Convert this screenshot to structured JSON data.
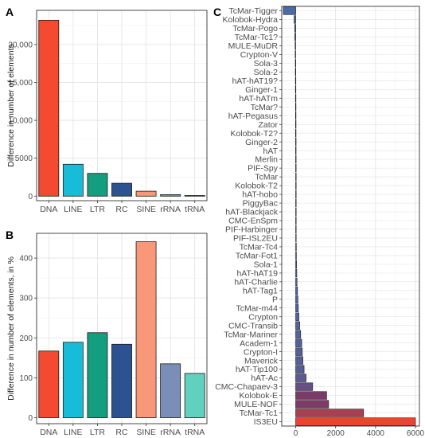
{
  "chart_data": [
    {
      "panel": "A",
      "type": "bar",
      "ylabel": "Difference in number of elements",
      "categories": [
        "DNA",
        "LINE",
        "LTR",
        "RC",
        "SINE",
        "rRNA",
        "tRNA"
      ],
      "values": [
        23200,
        4200,
        3000,
        1700,
        650,
        200,
        80
      ],
      "colors": [
        "#f44a2f",
        "#17bcd8",
        "#139e7f",
        "#2c5291",
        "#f89878",
        "#7b8eb8",
        "#5fd1be"
      ],
      "ylim": [
        -600,
        24500
      ],
      "yticks": [
        0,
        5000,
        10000,
        15000,
        20000
      ],
      "ytick_labels": [
        "0",
        "5000",
        "10,000",
        "15,000",
        "20,000"
      ],
      "grid": true
    },
    {
      "panel": "B",
      "type": "bar",
      "ylabel": "Difference in number of elements, in %",
      "categories": [
        "DNA",
        "LINE",
        "LTR",
        "RC",
        "SINE",
        "rRNA",
        "tRNA"
      ],
      "values": [
        167,
        189,
        213,
        184,
        441,
        135,
        111
      ],
      "colors": [
        "#f44a2f",
        "#17bcd8",
        "#139e7f",
        "#2c5291",
        "#f89878",
        "#7b8eb8",
        "#5fd1be"
      ],
      "ylim": [
        -15,
        462
      ],
      "yticks": [
        0,
        100,
        200,
        300,
        400
      ],
      "ytick_labels": [
        "0",
        "100",
        "200",
        "300",
        "400"
      ],
      "grid": true
    },
    {
      "panel": "C",
      "type": "bar",
      "orientation": "horizontal",
      "categories": [
        "TcMar-Tigger",
        "Kolobok-Hydra",
        "TcMar-Pogo",
        "TcMar-Tc1?",
        "MULE-MuDR",
        "Crypton-V",
        "Sola-3",
        "Sola-2",
        "hAT-hAT19?",
        "Ginger-1",
        "hAT-hATm",
        "TcMar?",
        "hAT-Pegasus",
        "Zator",
        "Kolobok-T2?",
        "Ginger-2",
        "hAT",
        "Merlin",
        "PIF-Spy",
        "TcMar",
        "Kolobok-T2",
        "hAT-hobo",
        "PiggyBac",
        "hAT-Blackjack",
        "CMC-EnSpm",
        "PIF-Harbinger",
        "PIF-ISL2EU",
        "TcMar-Tc4",
        "TcMar-Fot1",
        "Sola-1",
        "hAT-hAT19",
        "hAT-Charlie",
        "hAT-Tag1",
        "P",
        "TcMar-m44",
        "Crypton",
        "CMC-Transib",
        "TcMar-Mariner",
        "Academ-1",
        "Crypton-I",
        "Maverick",
        "hAT-Tip100",
        "hAT-Ac",
        "CMC-Chapaev-3",
        "Kolobok-E",
        "MULE-NOF",
        "TcMar-Tc1",
        "IS3EU"
      ],
      "values": [
        -620,
        -80,
        -50,
        -45,
        -30,
        -25,
        -20,
        -18,
        -15,
        -15,
        -12,
        -10,
        -10,
        -8,
        -8,
        -5,
        -5,
        -3,
        -2,
        5,
        8,
        10,
        12,
        15,
        18,
        20,
        25,
        30,
        35,
        45,
        55,
        65,
        90,
        110,
        130,
        160,
        200,
        250,
        300,
        330,
        360,
        420,
        520,
        850,
        1550,
        1650,
        3400,
        6000
      ],
      "xlim": [
        -700,
        6200
      ],
      "xticks": [
        0,
        2000,
        4000,
        6000
      ],
      "xtick_labels": [
        "0",
        "2000",
        "4000",
        "6000"
      ],
      "color_low": "#4a6ba8",
      "color_mid": "#7a3b6a",
      "color_high": "#e84631",
      "grid": true
    }
  ],
  "panel_labels": [
    "A",
    "B",
    "C"
  ]
}
